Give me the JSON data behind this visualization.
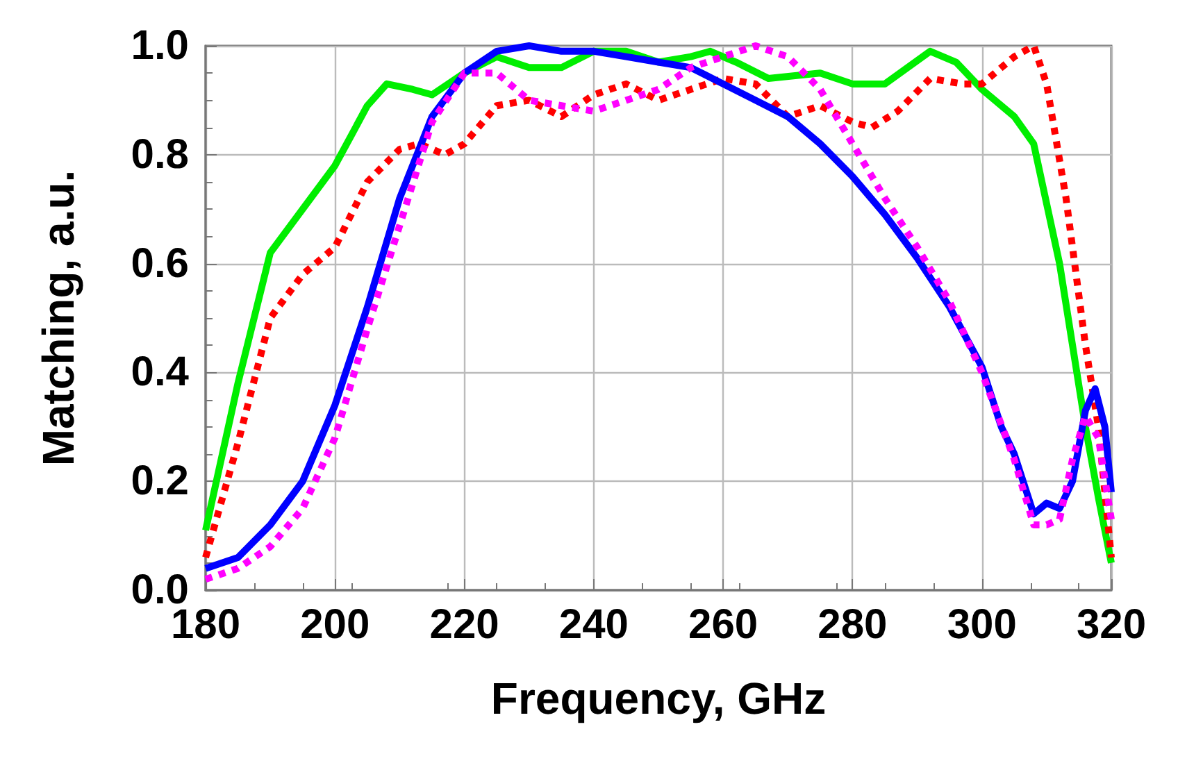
{
  "chart_data": {
    "type": "line",
    "xlabel": "Frequency, GHz",
    "ylabel": "Matching, a.u.",
    "xlim": [
      180,
      320
    ],
    "xticks": [
      180,
      200,
      220,
      240,
      260,
      280,
      300,
      320
    ],
    "ylim": [
      0,
      1
    ],
    "yticks": [
      {
        "value": 0,
        "label": "0.0"
      },
      {
        "value": 0.2,
        "label": "0.2"
      },
      {
        "value": 0.4,
        "label": "0.4"
      },
      {
        "value": 0.6,
        "label": "0.6"
      },
      {
        "value": 0.8,
        "label": "0.8"
      },
      {
        "value": 1,
        "label": "1.0"
      }
    ],
    "grid": true,
    "marker": "none",
    "series": [
      {
        "color": "#00ee00",
        "line_style": "solid",
        "x": [
          180,
          185,
          190,
          195,
          200,
          205,
          208,
          212,
          215,
          220,
          225,
          230,
          235,
          240,
          245,
          250,
          255,
          258,
          262,
          267,
          275,
          280,
          285,
          292,
          296,
          300,
          305,
          308,
          312,
          316,
          318,
          320
        ],
        "values": [
          0.11,
          0.38,
          0.62,
          0.7,
          0.78,
          0.89,
          0.93,
          0.92,
          0.91,
          0.95,
          0.98,
          0.96,
          0.96,
          0.99,
          0.99,
          0.97,
          0.98,
          0.99,
          0.97,
          0.94,
          0.95,
          0.93,
          0.93,
          0.99,
          0.97,
          0.92,
          0.87,
          0.82,
          0.6,
          0.3,
          0.17,
          0.05
        ]
      },
      {
        "color": "#ff0000",
        "line_style": "dotted",
        "x": [
          180,
          185,
          190,
          195,
          200,
          205,
          210,
          213,
          217,
          220,
          225,
          230,
          235,
          240,
          245,
          250,
          255,
          260,
          265,
          270,
          275,
          280,
          283,
          287,
          292,
          297,
          300,
          305,
          308,
          310,
          313,
          316,
          318,
          320
        ],
        "values": [
          0.06,
          0.27,
          0.5,
          0.58,
          0.63,
          0.75,
          0.81,
          0.82,
          0.8,
          0.82,
          0.89,
          0.9,
          0.87,
          0.91,
          0.93,
          0.9,
          0.92,
          0.94,
          0.93,
          0.87,
          0.89,
          0.86,
          0.85,
          0.88,
          0.94,
          0.93,
          0.93,
          0.98,
          1.0,
          0.93,
          0.72,
          0.45,
          0.3,
          0.06
        ]
      },
      {
        "color": "#0000ff",
        "line_style": "solid",
        "x": [
          180,
          185,
          190,
          195,
          200,
          205,
          210,
          215,
          220,
          225,
          230,
          235,
          240,
          245,
          250,
          255,
          260,
          265,
          270,
          275,
          280,
          285,
          290,
          295,
          300,
          303,
          305,
          308,
          310,
          312,
          314,
          316,
          317.5,
          319,
          320
        ],
        "values": [
          0.04,
          0.06,
          0.12,
          0.2,
          0.34,
          0.52,
          0.72,
          0.87,
          0.95,
          0.99,
          1.0,
          0.99,
          0.99,
          0.98,
          0.97,
          0.96,
          0.93,
          0.9,
          0.87,
          0.82,
          0.76,
          0.69,
          0.61,
          0.52,
          0.41,
          0.3,
          0.25,
          0.14,
          0.16,
          0.15,
          0.2,
          0.33,
          0.37,
          0.3,
          0.18
        ]
      },
      {
        "color": "#ff00ff",
        "line_style": "dotted",
        "x": [
          180,
          185,
          190,
          195,
          200,
          205,
          210,
          215,
          220,
          225,
          230,
          235,
          240,
          245,
          250,
          255,
          260,
          265,
          270,
          275,
          280,
          285,
          290,
          295,
          300,
          305,
          308,
          310,
          312,
          314,
          316,
          318,
          320
        ],
        "values": [
          0.02,
          0.04,
          0.08,
          0.15,
          0.28,
          0.48,
          0.67,
          0.86,
          0.95,
          0.95,
          0.9,
          0.89,
          0.88,
          0.9,
          0.92,
          0.96,
          0.98,
          1.0,
          0.98,
          0.92,
          0.82,
          0.72,
          0.63,
          0.53,
          0.4,
          0.24,
          0.12,
          0.12,
          0.13,
          0.24,
          0.32,
          0.28,
          0.13
        ]
      }
    ]
  }
}
